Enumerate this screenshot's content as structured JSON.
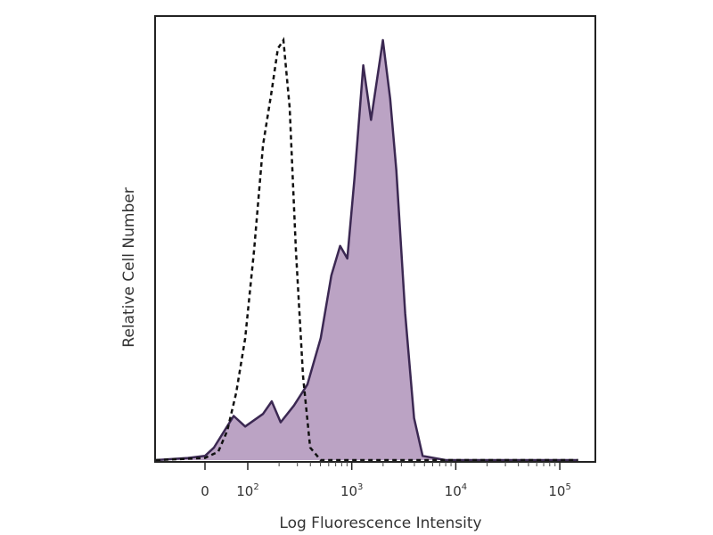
{
  "chart_data": {
    "type": "area",
    "title": "",
    "xlabel": "Log Fluorescence Intensity",
    "ylabel": "Relative Cell Number",
    "x_scale": "biexponential (linear near 0, log above 10^2)",
    "xlim": [
      -150,
      200000
    ],
    "ylim": [
      0,
      105
    ],
    "x_ticks": [
      {
        "value": 0,
        "label": "0"
      },
      {
        "value": 100,
        "label": "10",
        "exp": "2"
      },
      {
        "value": 1000,
        "label": "10",
        "exp": "3"
      },
      {
        "value": 10000,
        "label": "10",
        "exp": "4"
      },
      {
        "value": 100000,
        "label": "10",
        "exp": "5"
      }
    ],
    "grid": false,
    "legend": "none",
    "colors": {
      "fill": "#bba3c4",
      "stroke": "#3b2852",
      "dashed": "#111111"
    },
    "series": [
      {
        "style": "filled-solid",
        "x": [
          -120,
          -40,
          0,
          21,
          67,
          94,
          140,
          170,
          207,
          278,
          374,
          502,
          636,
          772,
          906,
          1060,
          1290,
          1530,
          1990,
          2340,
          2680,
          3260,
          3970,
          4800,
          8000,
          30000,
          150000
        ],
        "y": [
          0,
          0.5,
          1,
          3,
          10.5,
          8,
          11,
          14,
          9,
          13,
          18,
          29,
          44,
          51,
          48,
          67,
          94,
          81,
          100,
          86,
          69,
          35,
          10,
          1,
          0,
          0,
          0
        ]
      },
      {
        "style": "dashed-outline",
        "x": [
          -120,
          0,
          31,
          52,
          73,
          94,
          115,
          140,
          170,
          195,
          220,
          253,
          290,
          340,
          398,
          502,
          1000,
          10000,
          150000
        ],
        "y": [
          0,
          0.5,
          2,
          7,
          16,
          29,
          50,
          75,
          88,
          98,
          100,
          84,
          50,
          20,
          3,
          0,
          0,
          0,
          0
        ]
      }
    ]
  }
}
